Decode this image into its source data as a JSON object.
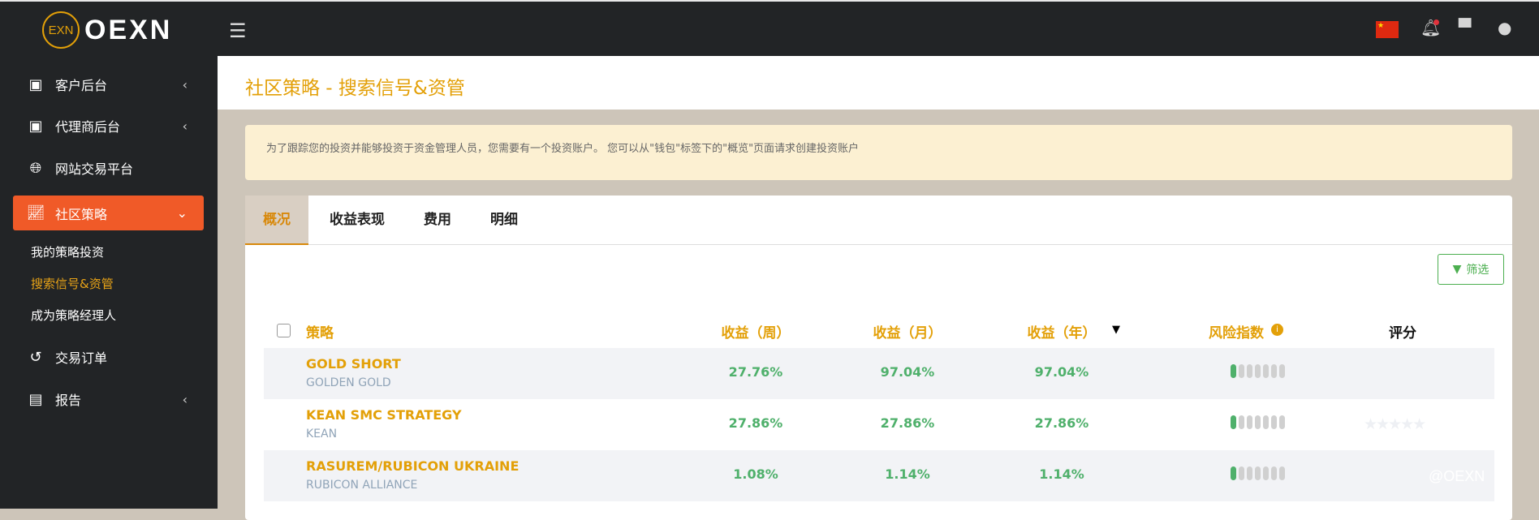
{
  "brand": {
    "logo_mark": "EXN",
    "name": "OEXN"
  },
  "topbar": {
    "icons": [
      "menu-icon",
      "china-flag-icon",
      "bell-icon",
      "chat-icon",
      "user-icon"
    ],
    "notification_dot_color": "#e0323c"
  },
  "sidebar": {
    "items": [
      {
        "label": "客户后台",
        "icon": "id-card-icon",
        "expandable": true
      },
      {
        "label": "代理商后台",
        "icon": "id-card-icon",
        "expandable": true
      },
      {
        "label": "网站交易平台",
        "icon": "globe-icon",
        "expandable": false
      },
      {
        "label": "社区策略",
        "icon": "chart-line-icon",
        "expandable": true,
        "active": true
      },
      {
        "label": "交易订单",
        "icon": "history-icon",
        "expandable": false
      },
      {
        "label": "报告",
        "icon": "report-icon",
        "expandable": true
      }
    ],
    "subitems": [
      {
        "label": "我的策略投资"
      },
      {
        "label": "搜索信号&资管",
        "current": true
      },
      {
        "label": "成为策略经理人"
      }
    ],
    "accent": "#f05a28"
  },
  "page": {
    "title": "社区策略 - 搜索信号&资管"
  },
  "notice": {
    "text": "为了跟踪您的投资并能够投资于资金管理人员，您需要有一个投资账户。 您可以从\"钱包\"标签下的\"概览\"页面请求创建投资账户"
  },
  "tabs": [
    {
      "label": "概况",
      "active": true
    },
    {
      "label": "收益表现"
    },
    {
      "label": "费用"
    },
    {
      "label": "明细"
    }
  ],
  "filter": {
    "label": "筛选"
  },
  "table": {
    "headers": [
      "策略",
      "收益（周）",
      "收益（月）",
      "收益（年）",
      "风险指数",
      "评分"
    ],
    "sorted_column": "收益（年）",
    "sort_direction": "desc",
    "rows": [
      {
        "name": "GOLD SHORT",
        "manager": "GOLDEN GOLD",
        "week": "27.76%",
        "month": "97.04%",
        "year": "97.04%",
        "risk_level": 1,
        "risk_max": 7,
        "rating": null
      },
      {
        "name": "KEAN SMC STRATEGY",
        "manager": "KEAN",
        "week": "27.86%",
        "month": "27.86%",
        "year": "27.86%",
        "risk_level": 1,
        "risk_max": 7,
        "rating": 0
      },
      {
        "name": "RASUREM/RUBICON UKRAINE",
        "manager": "RUBICON ALLIANCE",
        "week": "1.08%",
        "month": "1.14%",
        "year": "1.14%",
        "risk_level": 1,
        "risk_max": 7,
        "rating": null
      }
    ]
  },
  "watermark": "@OEXN"
}
